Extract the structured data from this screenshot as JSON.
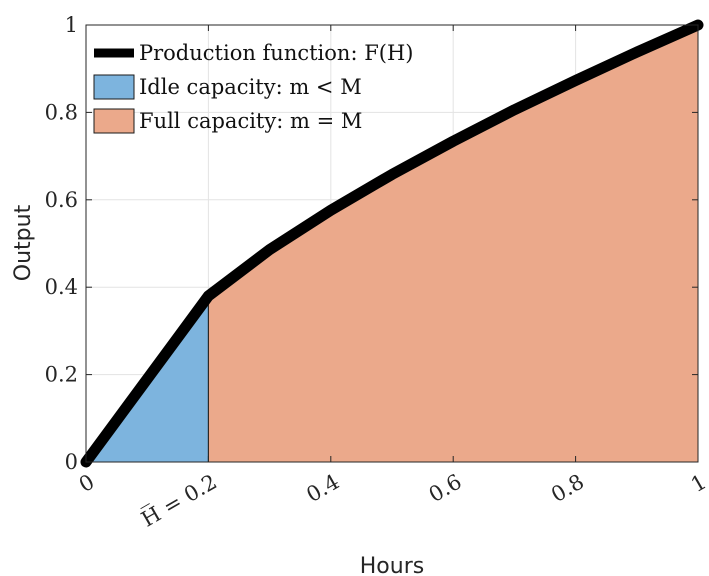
{
  "chart_data": {
    "type": "area",
    "xlabel": "Hours",
    "ylabel": "Output",
    "xlim": [
      0,
      1
    ],
    "ylim": [
      0,
      1
    ],
    "grid": true,
    "legend_position": "top-left",
    "x_ticks": [
      {
        "value": 0,
        "label": "0"
      },
      {
        "value": 0.2,
        "label": "H̅ = 0.2"
      },
      {
        "value": 0.4,
        "label": "0.4"
      },
      {
        "value": 0.6,
        "label": "0.6"
      },
      {
        "value": 0.8,
        "label": "0.8"
      },
      {
        "value": 1,
        "label": "1"
      }
    ],
    "y_ticks": [
      {
        "value": 0,
        "label": "0"
      },
      {
        "value": 0.2,
        "label": "0.2"
      },
      {
        "value": 0.4,
        "label": "0.4"
      },
      {
        "value": 0.6,
        "label": "0.6"
      },
      {
        "value": 0.8,
        "label": "0.8"
      },
      {
        "value": 1,
        "label": "1"
      }
    ],
    "series": [
      {
        "name": "Production function: F(H)",
        "kind": "line",
        "color": "#000000",
        "x": [
          0,
          0.05,
          0.1,
          0.15,
          0.2,
          0.3,
          0.4,
          0.5,
          0.6,
          0.7,
          0.8,
          0.9,
          1.0
        ],
        "y": [
          0,
          0.095,
          0.19,
          0.285,
          0.38,
          0.486,
          0.576,
          0.658,
          0.734,
          0.806,
          0.873,
          0.938,
          1.0
        ]
      },
      {
        "name": "Idle capacity: m < M",
        "kind": "area",
        "color": "#7DB4DE",
        "x": [
          0,
          0.05,
          0.1,
          0.15,
          0.2
        ],
        "y": [
          0,
          0.095,
          0.19,
          0.285,
          0.38
        ]
      },
      {
        "name": "Full capacity: m = M",
        "kind": "area",
        "color": "#EBA98B",
        "x": [
          0.2,
          0.3,
          0.4,
          0.5,
          0.6,
          0.7,
          0.8,
          0.9,
          1.0
        ],
        "y": [
          0.38,
          0.486,
          0.576,
          0.658,
          0.734,
          0.806,
          0.873,
          0.938,
          1.0
        ]
      }
    ]
  }
}
